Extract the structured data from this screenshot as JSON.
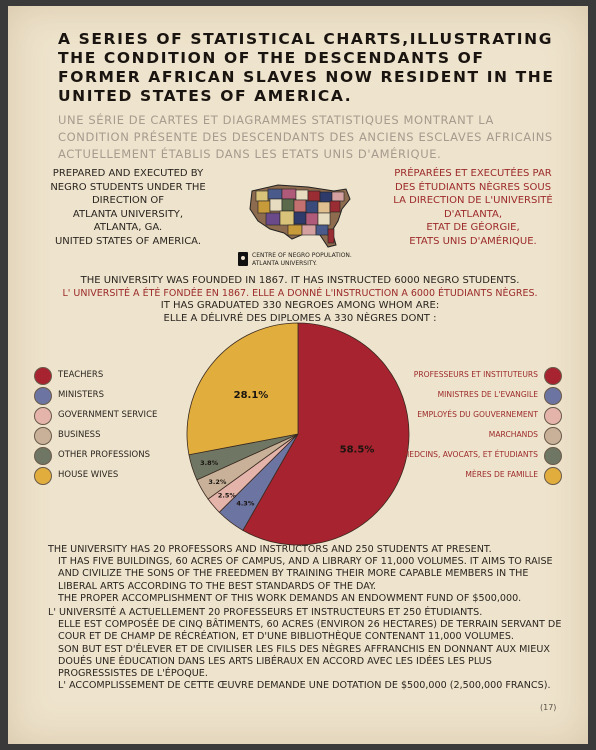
{
  "title_en": "A SERIES OF STATISTICAL CHARTS,ILLUSTRATING THE CONDITION OF THE DESCENDANTS OF FORMER AFRICAN SLAVES NOW RESIDENT IN THE UNITED STATES OF AMERICA.",
  "title_fr": "UNE SÉRIE DE CARTES ET DIAGRAMMES STATISTIQUES MONTRANT LA CONDITION PRÉSENTE DES DESCENDANTS DES ANCIENS ESCLAVES AFRICAINS ACTUELLEMENT ÉTABLIS DANS LES ETATS UNIS D'AMÉRIQUE.",
  "credit_en": [
    "PREPARED AND EXECUTED BY",
    "NEGRO STUDENTS UNDER THE",
    "DIRECTION OF",
    "ATLANTA UNIVERSITY,",
    "ATLANTA, GA.",
    "UNITED STATES OF AMERICA."
  ],
  "credit_fr": [
    "PRÉPARÉES ET EXECUTÉES PAR",
    "DES ÉTUDIANTS NÈGRES SOUS",
    "LA DIRECTION DE L'UNIVERSITÉ",
    "D'ATLANTA,",
    "ETAT DE GÉORGIE,",
    "ETATS UNIS D'AMÉRIQUE."
  ],
  "map_legend": "CENTRE OF NEGRO POPULATION. ATLANTA UNIVERSITY.",
  "founded_en": "THE UNIVERSITY WAS FOUNDED IN 1867. IT HAS INSTRUCTED 6000 NEGRO STUDENTS.",
  "founded_fr": "L' UNIVERSITÉ A ÉTÉ FONDÉE EN 1867. ELLE A DONNÉ L'INSTRUCTION A 6000 ÉTUDIANTS NÈGRES.",
  "graduated_en": "IT HAS GRADUATED 330 NEGROES AMONG WHOM ARE:",
  "graduated_fr": "ELLE A DÉLIVRÉ DES DIPLOMES A 330 NÈGRES DONT :",
  "chart_data": {
    "type": "pie",
    "categories": [
      "TEACHERS",
      "MINISTERS",
      "GOVERNMENT SERVICE",
      "BUSINESS",
      "OTHER PROFESSIONS",
      "HOUSE WIVES"
    ],
    "categories_fr": [
      "PROFESSEURS ET INSTITUTEURS",
      "MINISTRES DE L'EVANGILE",
      "EMPLOYÉS DU GOUVERNEMENT",
      "MARCHANDS",
      "MEDCINS, AVOCATS, ET ÉTUDIANTS",
      "MÈRES DE FAMILLE"
    ],
    "values": [
      58.5,
      4.3,
      2.5,
      3.2,
      3.8,
      28.1
    ],
    "value_labels": [
      "58.5%",
      "4.3%",
      "2.5%",
      "3.2%",
      "3.8%",
      "28.1%"
    ],
    "colors": [
      "#a7232f",
      "#6c74a1",
      "#e4b3aa",
      "#c8b198",
      "#6f7663",
      "#e1ad3d"
    ]
  },
  "body_en": [
    "THE UNIVERSITY HAS 20 PROFESSORS AND INSTRUCTORS AND 250 STUDENTS AT PRESENT.",
    "IT HAS FIVE BUILDINGS, 60 ACRES OF CAMPUS, AND A LIBRARY OF 11,000 VOLUMES. IT AIMS TO RAISE AND CIVILIZE THE SONS OF THE FREEDMEN BY TRAINING THEIR MORE CAPABLE MEMBERS IN THE LIBERAL ARTS ACCORDING TO THE BEST STANDARDS OF THE DAY.",
    "THE PROPER ACCOMPLISHMENT OF THIS WORK DEMANDS AN ENDOWMENT FUND OF $500,000."
  ],
  "body_fr": [
    "L' UNIVERSITÉ A ACTUELLEMENT 20 PROFESSEURS ET INSTRUCTEURS ET 250 ÉTUDIANTS.",
    "ELLE EST COMPOSÉE DE CINQ BÂTIMENTS, 60 ACRES (ENVIRON 26 HECTARES) DE TERRAIN SERVANT DE COUR ET DE CHAMP DE RÉCRÉATION, ET D'UNE BIBLIOTHÈQUE CONTENANT 11,000 VOLUMES.",
    "SON BUT EST D'ÉLEVER ET DE CIVILISER LES FILS DES NÈGRES AFFRANCHIS EN DONNANT AUX MIEUX DOUÉS UNE ÉDUCATION DANS LES ARTS LIBÉRAUX EN ACCORD AVEC LES IDÉES LES PLUS PROGRESSISTES DE L'ÉPOQUE.",
    "L' ACCOMPLISSEMENT DE CETTE ŒUVRE DEMANDE UNE DOTATION DE $500,000 (2,500,000 FRANCS)."
  ],
  "page_number": "(17)"
}
